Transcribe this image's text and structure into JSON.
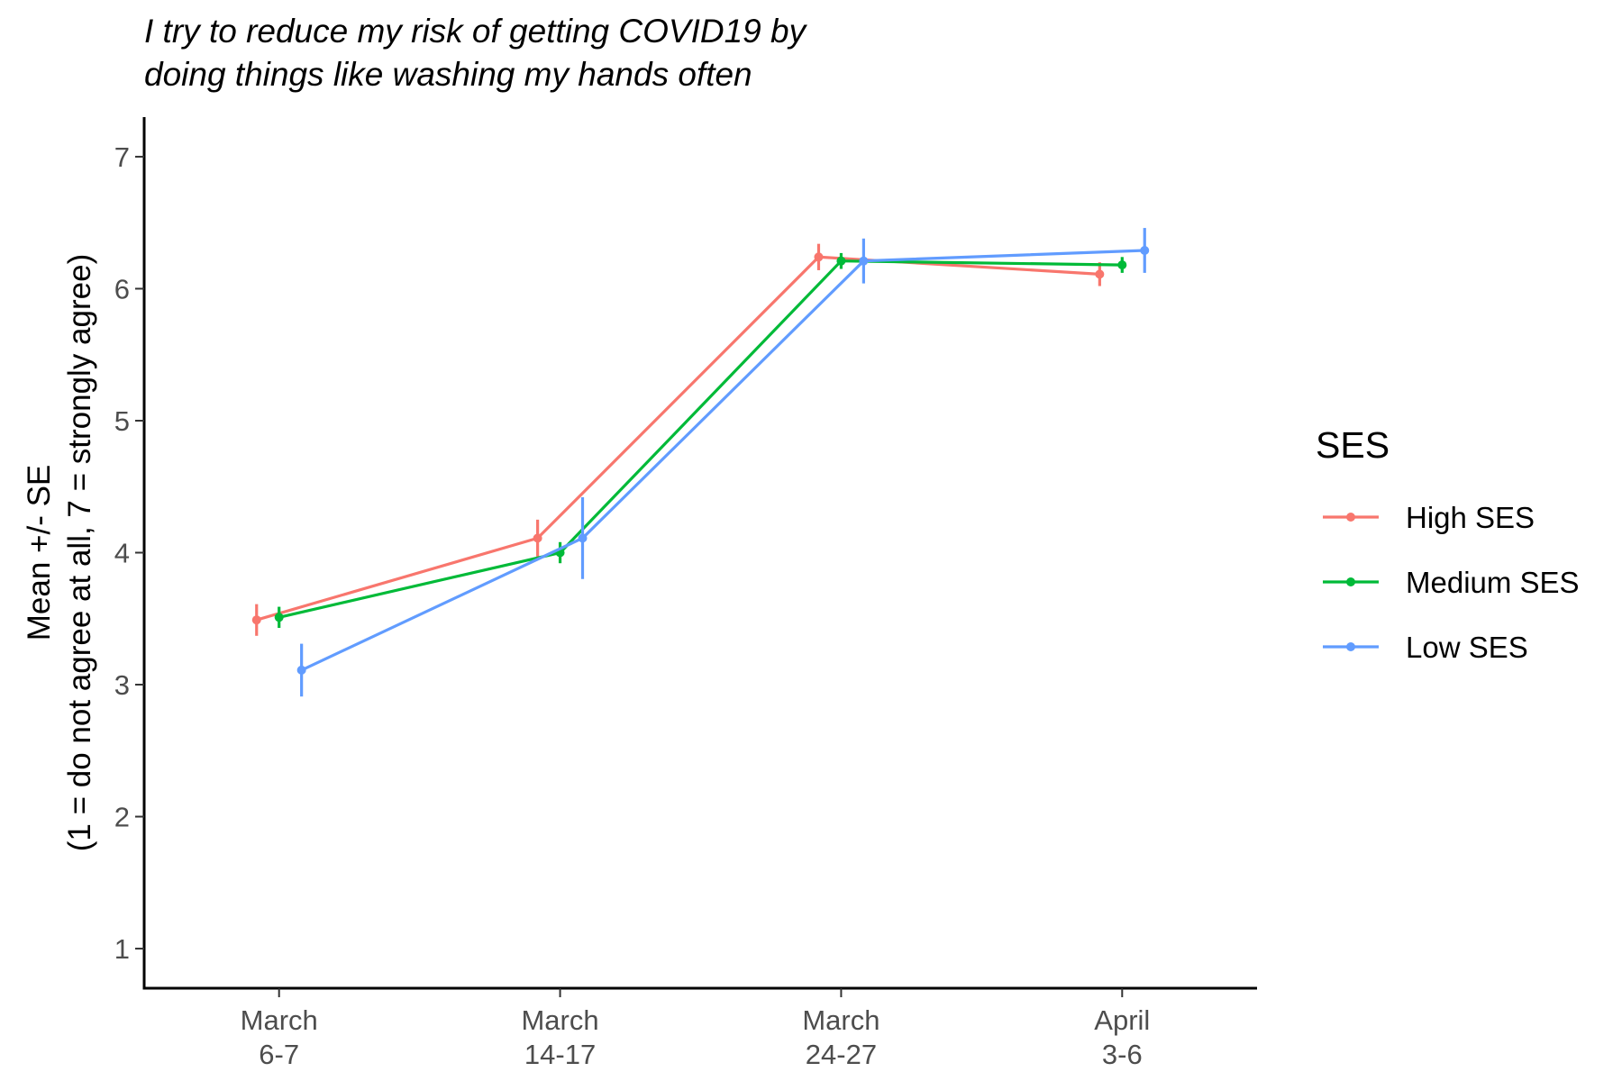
{
  "chart_data": {
    "type": "line",
    "title": [
      "I try to reduce my risk of getting COVID19 by",
      "doing things like washing my hands often"
    ],
    "ylabel": [
      "Mean +/- SE",
      "(1 = do not agree at all, 7 = strongly agree)"
    ],
    "xlabel": "",
    "categories": [
      [
        "March",
        "6-7"
      ],
      [
        "March",
        "14-17"
      ],
      [
        "March",
        "24-27"
      ],
      [
        "April",
        "3-6"
      ]
    ],
    "ylim": [
      0.7,
      7.3
    ],
    "yticks": [
      1,
      2,
      3,
      4,
      5,
      6,
      7
    ],
    "grid": false,
    "legend": {
      "title": "SES",
      "position": "right"
    },
    "series": [
      {
        "name": "High SES",
        "color": "#F8766D",
        "values": [
          3.49,
          4.11,
          6.24,
          6.11
        ],
        "se": [
          0.12,
          0.14,
          0.1,
          0.09
        ]
      },
      {
        "name": "Medium SES",
        "color": "#00BA38",
        "values": [
          3.51,
          4.0,
          6.21,
          6.18
        ],
        "se": [
          0.08,
          0.08,
          0.06,
          0.06
        ]
      },
      {
        "name": "Low SES",
        "color": "#619CFF",
        "values": [
          3.11,
          4.11,
          6.21,
          6.29
        ],
        "se": [
          0.2,
          0.31,
          0.17,
          0.17
        ]
      }
    ]
  }
}
